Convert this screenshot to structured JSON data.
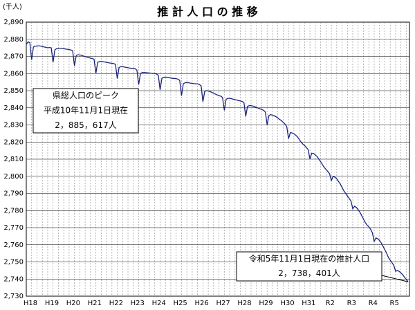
{
  "chart_data": {
    "type": "line",
    "title": "推 計 人 口 の 推 移",
    "y_label": "(千人)",
    "categories": [
      "H18",
      null,
      null,
      null,
      null,
      null,
      null,
      null,
      null,
      null,
      null,
      null,
      "H19",
      null,
      null,
      null,
      null,
      null,
      null,
      null,
      null,
      null,
      null,
      null,
      "H20",
      null,
      null,
      null,
      null,
      null,
      null,
      null,
      null,
      null,
      null,
      null,
      "H21",
      null,
      null,
      null,
      null,
      null,
      null,
      null,
      null,
      null,
      null,
      null,
      "H22",
      null,
      null,
      null,
      null,
      null,
      null,
      null,
      null,
      null,
      null,
      null,
      "H23",
      null,
      null,
      null,
      null,
      null,
      null,
      null,
      null,
      null,
      null,
      null,
      "H24",
      null,
      null,
      null,
      null,
      null,
      null,
      null,
      null,
      null,
      null,
      null,
      "H25",
      null,
      null,
      null,
      null,
      null,
      null,
      null,
      null,
      null,
      null,
      null,
      "H26",
      null,
      null,
      null,
      null,
      null,
      null,
      null,
      null,
      null,
      null,
      null,
      "H27",
      null,
      null,
      null,
      null,
      null,
      null,
      null,
      null,
      null,
      null,
      null,
      "H28",
      null,
      null,
      null,
      null,
      null,
      null,
      null,
      null,
      null,
      null,
      null,
      "H29",
      null,
      null,
      null,
      null,
      null,
      null,
      null,
      null,
      null,
      null,
      null,
      "H30",
      null,
      null,
      null,
      null,
      null,
      null,
      null,
      null,
      null,
      null,
      null,
      "H31",
      null,
      null,
      null,
      null,
      null,
      null,
      null,
      null,
      null,
      null,
      null,
      "R2",
      null,
      null,
      null,
      null,
      null,
      null,
      null,
      null,
      null,
      null,
      null,
      "R3",
      null,
      null,
      null,
      null,
      null,
      null,
      null,
      null,
      null,
      null,
      null,
      "R4",
      null,
      null,
      null,
      null,
      null,
      null,
      null,
      null,
      null,
      null,
      null,
      "R5",
      null,
      null,
      null,
      null,
      null,
      null,
      null,
      null,
      null,
      null
    ],
    "series": [
      {
        "color": "#1a237e",
        "values": [
          2877.0,
          2878.5,
          2878.0,
          2868.0,
          2875.5,
          2876.0,
          2876.0,
          2876.2,
          2876.0,
          2875.8,
          2875.5,
          2875.3,
          2875.0,
          2875.2,
          2875.0,
          2866.5,
          2873.8,
          2874.5,
          2874.6,
          2874.8,
          2874.6,
          2874.5,
          2874.3,
          2874.2,
          2874.0,
          2873.8,
          2873.2,
          2864.5,
          2870.5,
          2871.0,
          2870.8,
          2870.6,
          2870.2,
          2869.9,
          2869.6,
          2869.3,
          2869.0,
          2868.8,
          2868.3,
          2860.0,
          2866.5,
          2867.0,
          2867.0,
          2866.9,
          2866.7,
          2866.5,
          2866.3,
          2866.1,
          2866.0,
          2865.8,
          2865.3,
          2857.0,
          2863.5,
          2864.0,
          2864.0,
          2863.8,
          2863.6,
          2863.4,
          2863.2,
          2863.0,
          2863.0,
          2862.8,
          2862.0,
          2853.5,
          2860.0,
          2860.6,
          2860.7,
          2860.6,
          2860.4,
          2860.3,
          2860.1,
          2860.0,
          2860.0,
          2859.7,
          2859.0,
          2850.5,
          2857.2,
          2857.8,
          2857.9,
          2857.8,
          2857.6,
          2857.4,
          2857.2,
          2857.1,
          2857.0,
          2856.7,
          2856.0,
          2847.0,
          2854.0,
          2854.6,
          2854.7,
          2854.6,
          2854.4,
          2854.3,
          2854.1,
          2854.0,
          2854.0,
          2853.6,
          2852.8,
          2843.5,
          2849.5,
          2850.0,
          2849.8,
          2849.5,
          2849.0,
          2848.5,
          2848.0,
          2847.5,
          2847.0,
          2846.8,
          2846.0,
          2838.5,
          2845.0,
          2845.5,
          2845.5,
          2845.3,
          2845.0,
          2844.8,
          2844.5,
          2844.2,
          2844.0,
          2843.7,
          2843.0,
          2835.0,
          2840.8,
          2841.3,
          2841.2,
          2841.0,
          2840.6,
          2840.2,
          2839.8,
          2839.4,
          2839.0,
          2838.5,
          2837.5,
          2830.0,
          2835.5,
          2836.0,
          2835.7,
          2835.3,
          2834.8,
          2834.0,
          2833.2,
          2832.5,
          2831.5,
          2830.5,
          2829.0,
          2822.0,
          2825.5,
          2825.3,
          2824.8,
          2824.0,
          2823.0,
          2821.5,
          2820.0,
          2818.8,
          2818.0,
          2816.8,
          2815.5,
          2810.0,
          2813.5,
          2813.3,
          2812.5,
          2811.5,
          2810.0,
          2808.5,
          2806.8,
          2805.2,
          2804.0,
          2802.8,
          2801.5,
          2797.5,
          2800.0,
          2799.5,
          2798.5,
          2797.0,
          2795.5,
          2793.5,
          2791.5,
          2790.0,
          2788.5,
          2787.0,
          2785.5,
          2781.0,
          2782.5,
          2781.8,
          2780.5,
          2779.0,
          2777.0,
          2775.0,
          2773.0,
          2771.5,
          2770.5,
          2769.0,
          2767.0,
          2762.0,
          2764.0,
          2763.5,
          2762.5,
          2761.0,
          2759.0,
          2757.0,
          2755.0,
          2752.5,
          2751.0,
          2749.5,
          2748.0,
          2744.5,
          2745.0,
          2744.5,
          2743.5,
          2742.5,
          2741.0,
          2739.8,
          2738.4
        ]
      }
    ],
    "ylim": [
      2730,
      2890
    ],
    "yticks": [
      {
        "value": 2730,
        "label": "2,730"
      },
      {
        "value": 2740,
        "label": "2,740"
      },
      {
        "value": 2750,
        "label": "2,750"
      },
      {
        "value": 2760,
        "label": "2,760"
      },
      {
        "value": 2770,
        "label": "2,770"
      },
      {
        "value": 2780,
        "label": "2,780"
      },
      {
        "value": 2790,
        "label": "2,790"
      },
      {
        "value": 2800,
        "label": "2,800"
      },
      {
        "value": 2810,
        "label": "2,810"
      },
      {
        "value": 2820,
        "label": "2,820"
      },
      {
        "value": 2830,
        "label": "2,830"
      },
      {
        "value": 2840,
        "label": "2,840"
      },
      {
        "value": 2850,
        "label": "2,850"
      },
      {
        "value": 2860,
        "label": "2,860"
      },
      {
        "value": 2870,
        "label": "2,870"
      },
      {
        "value": 2880,
        "label": "2,880"
      },
      {
        "value": 2890,
        "label": "2,890"
      }
    ],
    "grid": true,
    "annotations": [
      [
        "県総人口のピーク",
        "平成10年11月1日現在",
        "2，885，617人"
      ],
      [
        "令和5年11月1日現在の推計人口",
        "2，738，401人"
      ]
    ]
  }
}
